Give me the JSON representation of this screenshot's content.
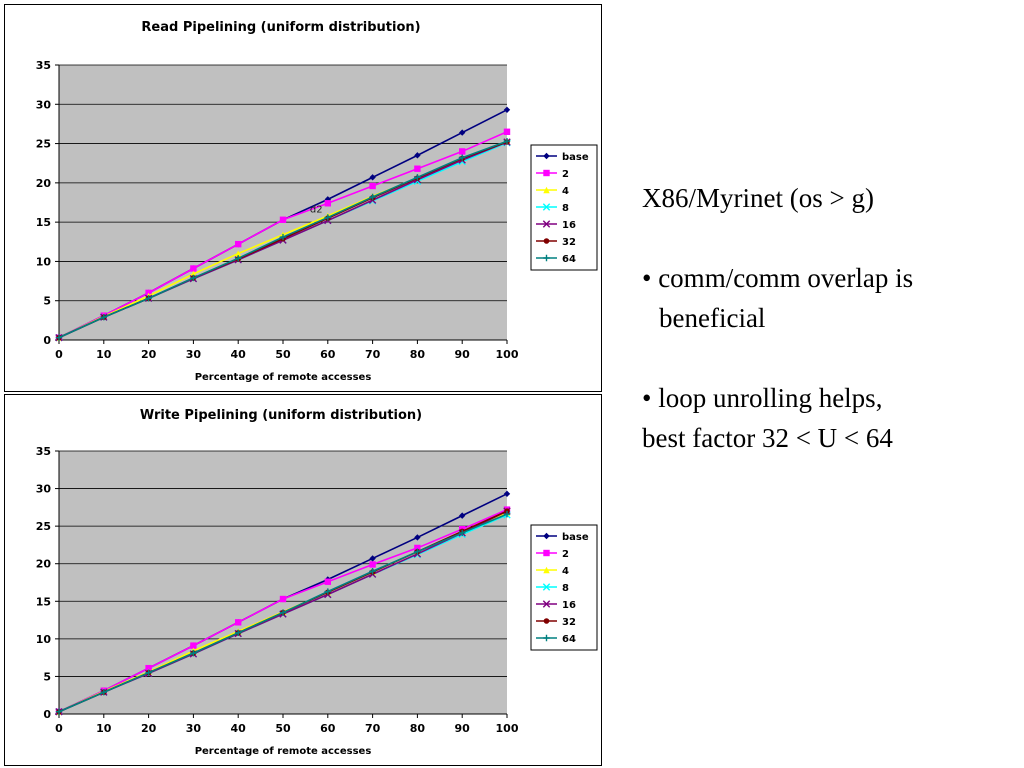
{
  "notes": {
    "heading": "X86/Myrinet (os > g)",
    "bullet1_line1": "• comm/comm overlap is",
    "bullet1_line2": "beneficial",
    "bullet2_line1": "• loop unrolling helps,",
    "bullet2_line2": "best factor 32 < U < 64"
  },
  "chart_data": [
    {
      "type": "line",
      "title": "Read Pipelining (uniform distribution)",
      "xlabel": "Percentage of remote accesses",
      "ylabel": "",
      "xlim": [
        0,
        100
      ],
      "ylim": [
        0,
        35
      ],
      "x": [
        0,
        10,
        20,
        30,
        40,
        50,
        60,
        70,
        80,
        90,
        100
      ],
      "yticks": [
        "0",
        "5",
        "10",
        "15",
        "20",
        "25",
        "30",
        "35"
      ],
      "xticks": [
        "0",
        "10",
        "20",
        "30",
        "40",
        "50",
        "60",
        "70",
        "80",
        "90",
        "100"
      ],
      "grid": true,
      "legend": "right",
      "annotation": "d2",
      "series": [
        {
          "name": "base",
          "color": "#000080",
          "marker": "diamond",
          "values": [
            0.3,
            3.1,
            6.0,
            9.1,
            12.2,
            15.3,
            17.9,
            20.7,
            23.5,
            26.4,
            29.3
          ]
        },
        {
          "name": "2",
          "color": "#ff00ff",
          "marker": "square",
          "values": [
            0.3,
            3.1,
            6.0,
            9.1,
            12.2,
            15.3,
            17.4,
            19.6,
            21.8,
            24.0,
            26.5
          ]
        },
        {
          "name": "4",
          "color": "#ffff00",
          "marker": "triangle",
          "values": [
            0.3,
            3.0,
            5.6,
            8.4,
            11.0,
            13.4,
            15.8,
            18.3,
            20.6,
            23.0,
            25.3
          ]
        },
        {
          "name": "8",
          "color": "#00ffff",
          "marker": "x",
          "values": [
            0.3,
            2.9,
            5.3,
            7.8,
            10.2,
            12.7,
            15.2,
            17.7,
            20.2,
            22.7,
            25.1
          ]
        },
        {
          "name": "16",
          "color": "#800080",
          "marker": "x",
          "values": [
            0.3,
            2.9,
            5.3,
            7.8,
            10.2,
            12.7,
            15.2,
            17.8,
            20.4,
            22.9,
            25.2
          ]
        },
        {
          "name": "32",
          "color": "#800000",
          "marker": "circle",
          "values": [
            0.3,
            2.9,
            5.3,
            7.9,
            10.3,
            12.9,
            15.5,
            18.1,
            20.6,
            23.1,
            25.2
          ]
        },
        {
          "name": "64",
          "color": "#008080",
          "marker": "plus",
          "values": [
            0.3,
            2.9,
            5.3,
            7.9,
            10.4,
            13.1,
            15.6,
            18.2,
            20.7,
            23.2,
            25.3
          ]
        }
      ]
    },
    {
      "type": "line",
      "title": "Write Pipelining (uniform distribution)",
      "xlabel": "Percentage of remote accesses",
      "ylabel": "",
      "xlim": [
        0,
        100
      ],
      "ylim": [
        0,
        35
      ],
      "x": [
        0,
        10,
        20,
        30,
        40,
        50,
        60,
        70,
        80,
        90,
        100
      ],
      "yticks": [
        "0",
        "5",
        "10",
        "15",
        "20",
        "25",
        "30",
        "35"
      ],
      "xticks": [
        "0",
        "10",
        "20",
        "30",
        "40",
        "50",
        "60",
        "70",
        "80",
        "90",
        "100"
      ],
      "grid": true,
      "legend": "right",
      "series": [
        {
          "name": "base",
          "color": "#000080",
          "marker": "diamond",
          "values": [
            0.3,
            3.1,
            6.1,
            9.1,
            12.2,
            15.3,
            17.9,
            20.7,
            23.5,
            26.4,
            29.3
          ]
        },
        {
          "name": "2",
          "color": "#ff00ff",
          "marker": "square",
          "values": [
            0.3,
            3.1,
            6.1,
            9.1,
            12.2,
            15.3,
            17.6,
            19.9,
            22.1,
            24.6,
            27.2
          ]
        },
        {
          "name": "4",
          "color": "#ffff00",
          "marker": "triangle",
          "values": [
            0.3,
            3.0,
            5.6,
            8.4,
            11.0,
            13.6,
            16.2,
            18.9,
            21.6,
            24.2,
            26.8
          ]
        },
        {
          "name": "8",
          "color": "#00ffff",
          "marker": "x",
          "values": [
            0.3,
            2.9,
            5.4,
            8.0,
            10.7,
            13.3,
            15.9,
            18.6,
            21.2,
            23.9,
            26.5
          ]
        },
        {
          "name": "16",
          "color": "#800080",
          "marker": "x",
          "values": [
            0.3,
            2.9,
            5.4,
            8.0,
            10.7,
            13.3,
            15.9,
            18.6,
            21.3,
            24.1,
            27.0
          ]
        },
        {
          "name": "32",
          "color": "#800000",
          "marker": "circle",
          "values": [
            0.3,
            2.9,
            5.5,
            8.1,
            10.8,
            13.5,
            16.2,
            18.9,
            21.6,
            24.3,
            27.0
          ]
        },
        {
          "name": "64",
          "color": "#008080",
          "marker": "plus",
          "values": [
            0.3,
            2.9,
            5.5,
            8.1,
            10.8,
            13.5,
            16.3,
            19.0,
            21.6,
            24.1,
            26.6
          ]
        }
      ]
    }
  ]
}
